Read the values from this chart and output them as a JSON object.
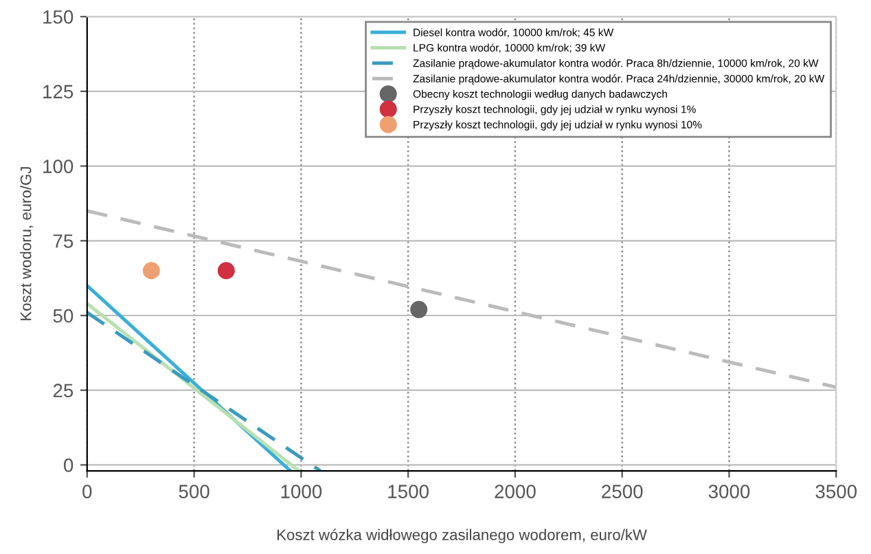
{
  "chart_data": {
    "type": "line",
    "xlabel": "Koszt wózka widłowego zasilanego wodorem, euro/kW",
    "ylabel": "Koszt wodoru, euro/GJ",
    "xlim": [
      0,
      3500
    ],
    "ylim": [
      -2,
      150
    ],
    "xticks": [
      0,
      500,
      1000,
      1500,
      2000,
      2500,
      3000,
      3500
    ],
    "yticks": [
      0,
      25,
      50,
      75,
      100,
      125,
      150
    ],
    "grid": true,
    "legend": "top right",
    "series": [
      {
        "name": "Diesel kontra wodór, 10000 km/rok; 45 kW",
        "color": "#3aaed8",
        "x": [
          0,
          950
        ],
        "values": [
          60,
          -2
        ],
        "line_style": "solid"
      },
      {
        "name": "LPG kontra wodór, 10000 km/rok; 39 kW",
        "color": "#b8e0b0",
        "x": [
          0,
          990
        ],
        "values": [
          54,
          -2
        ],
        "line_style": "solid"
      },
      {
        "name": "Zasilanie prądowe-akumulator kontra wodór. Praca 8h/dziennie, 10000 km/rok, 20 kW",
        "color": "#3a9ac0",
        "x": [
          0,
          1090
        ],
        "values": [
          51,
          -2
        ],
        "line_style": "dashed"
      },
      {
        "name": "Zasilanie prądowe-akumulator kontra wodór. Praca 24h/dziennie, 30000 km/rok, 20 kW",
        "color": "#bbbbbb",
        "x": [
          0,
          3500
        ],
        "values": [
          85,
          26
        ],
        "line_style": "dashed"
      },
      {
        "name": "Obecny koszt technologii według danych badawczych",
        "type": "scatter",
        "color": "#666666",
        "x": [
          1550
        ],
        "values": [
          52
        ],
        "marker": "circle"
      },
      {
        "name": "Przyszły koszt technologii, gdy jej udział w rynku wynosi 1%",
        "type": "scatter",
        "color": "#d03040",
        "x": [
          650
        ],
        "values": [
          65
        ],
        "marker": "circle"
      },
      {
        "name": "Przyszły koszt technologii, gdy jej udział w rynku wynosi 10%",
        "type": "scatter",
        "color": "#f0a070",
        "x": [
          300
        ],
        "values": [
          65
        ],
        "marker": "circle"
      }
    ]
  }
}
